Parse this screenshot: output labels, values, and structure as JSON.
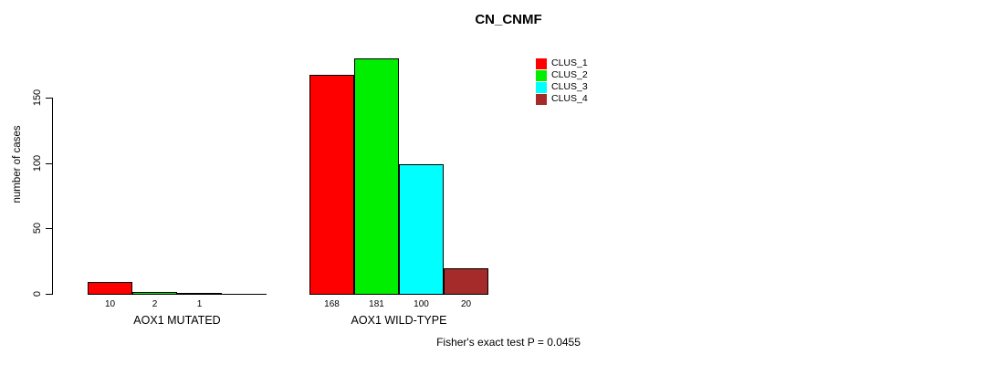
{
  "chart_data": {
    "type": "bar",
    "title": "CN_CNMF",
    "ylabel": "number of cases",
    "xlabel": "",
    "ylim": [
      0,
      150
    ],
    "yticks": [
      0,
      50,
      100,
      150
    ],
    "ytick_labels": [
      "0",
      "50",
      "100",
      "150"
    ],
    "grid": false,
    "legend_position": "top-right",
    "categories": [
      "AOX1 MUTATED",
      "AOX1 WILD-TYPE"
    ],
    "series": [
      {
        "name": "CLUS_1",
        "color": "#ff0000",
        "values": [
          10,
          168
        ]
      },
      {
        "name": "CLUS_2",
        "color": "#00ee00",
        "values": [
          2,
          181
        ]
      },
      {
        "name": "CLUS_3",
        "color": "#00ffff",
        "values": [
          1,
          100
        ]
      },
      {
        "name": "CLUS_4",
        "color": "#a52a2a",
        "values": [
          0,
          20
        ]
      }
    ],
    "bar_value_labels": [
      [
        "10",
        "2",
        "1",
        ""
      ],
      [
        "168",
        "181",
        "100",
        "20"
      ]
    ],
    "annotation": "Fisher's exact test P = 0.0455"
  }
}
